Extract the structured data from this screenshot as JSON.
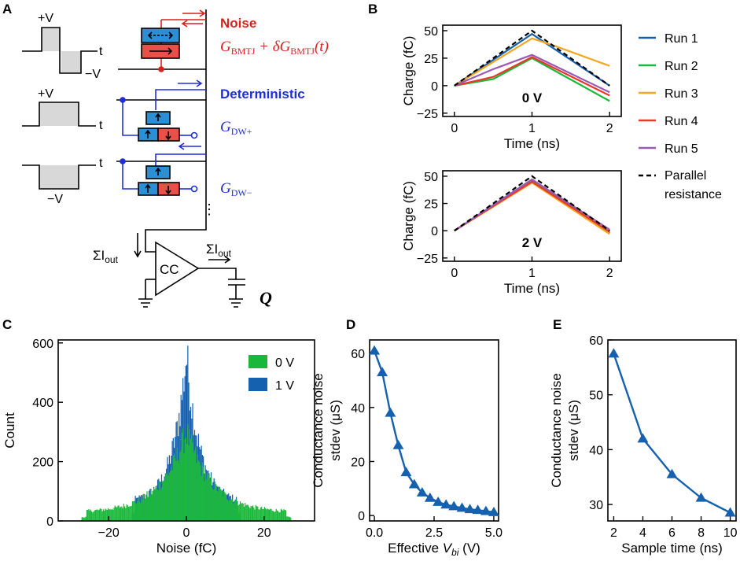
{
  "panels": {
    "a": "A",
    "b": "B",
    "c": "C",
    "d": "D",
    "e": "E"
  },
  "colors": {
    "blue": "#1660b0",
    "green": "#1ab83a",
    "orange": "#f5a623",
    "red": "#e8392b",
    "purple": "#9b59b6",
    "black": "#000000",
    "dw_blue": "#2c8fd6",
    "dw_red": "#e8504a",
    "circuit_blue": "#1f2fd8",
    "circuit_red": "#d9211e",
    "gray_fill": "#d8d8d8"
  },
  "circuit": {
    "pulse_plus": "+V",
    "pulse_minus": "−V",
    "pulse_t": "t",
    "noise_title": "Noise",
    "noise_eq_main": "G",
    "noise_eq_sub": "BMTJ",
    "noise_eq_mid": " + δG",
    "noise_eq_sub2": "BMTJ",
    "noise_eq_end": "(t)",
    "det_title": "Deterministic",
    "gdw_plus_main": "G",
    "gdw_plus_sub": "DW+",
    "gdw_minus_main": "G",
    "gdw_minus_sub": "DW−",
    "dots": "⋮",
    "sum_label": "ΣI",
    "sum_sub": "out",
    "cc_label": "CC",
    "q_label": "Q"
  },
  "chart_data": [
    {
      "id": "B-top",
      "type": "line",
      "annotation": "0 V",
      "xlabel": "Time (ns)",
      "ylabel": "Charge (fC)",
      "xlim": [
        -0.15,
        2.15
      ],
      "ylim": [
        -28,
        55
      ],
      "xticks": [
        "0",
        "1",
        "2"
      ],
      "xtick_values": [
        0,
        1,
        2
      ],
      "yticks": [
        "50",
        "25",
        "0",
        "−25"
      ],
      "ytick_values": [
        50,
        25,
        0,
        -25
      ],
      "series": [
        {
          "name": "Run 1",
          "color": "#1660b0",
          "x": [
            0,
            1,
            2
          ],
          "y": [
            0,
            47,
            0
          ]
        },
        {
          "name": "Run 2",
          "color": "#1ab83a",
          "x": [
            0,
            0.5,
            1,
            2
          ],
          "y": [
            0,
            6,
            25,
            -14
          ]
        },
        {
          "name": "Run 3",
          "color": "#f5a623",
          "x": [
            0,
            1,
            1.3,
            2
          ],
          "y": [
            0,
            43,
            36,
            18
          ]
        },
        {
          "name": "Run 4",
          "color": "#e8392b",
          "x": [
            0,
            0.5,
            1,
            2
          ],
          "y": [
            0,
            8,
            26,
            -9
          ]
        },
        {
          "name": "Run 5",
          "color": "#9b59b6",
          "x": [
            0,
            0.5,
            1,
            2
          ],
          "y": [
            0,
            15,
            28,
            -6
          ]
        },
        {
          "name": "Parallel resistance",
          "color": "#000000",
          "dashed": true,
          "x": [
            0,
            1,
            2
          ],
          "y": [
            0,
            50,
            0
          ]
        }
      ]
    },
    {
      "id": "B-bottom",
      "type": "line",
      "annotation": "2 V",
      "xlabel": "Time (ns)",
      "ylabel": "Charge (fC)",
      "xlim": [
        -0.15,
        2.15
      ],
      "ylim": [
        -28,
        55
      ],
      "xticks": [
        "0",
        "1",
        "2"
      ],
      "xtick_values": [
        0,
        1,
        2
      ],
      "yticks": [
        "50",
        "25",
        "0",
        "−25"
      ],
      "ytick_values": [
        50,
        25,
        0,
        -25
      ],
      "series": [
        {
          "name": "Run 1",
          "color": "#1660b0",
          "x": [
            0,
            1,
            2
          ],
          "y": [
            0,
            47,
            -2
          ]
        },
        {
          "name": "Run 2",
          "color": "#1ab83a",
          "x": [
            0,
            1,
            2
          ],
          "y": [
            0,
            46,
            -2
          ]
        },
        {
          "name": "Run 3",
          "color": "#f5a623",
          "x": [
            0,
            1,
            2
          ],
          "y": [
            0,
            44,
            -3
          ]
        },
        {
          "name": "Run 4",
          "color": "#e8392b",
          "x": [
            0,
            1,
            2
          ],
          "y": [
            0,
            45,
            -1
          ]
        },
        {
          "name": "Run 5",
          "color": "#9b59b6",
          "x": [
            0,
            1,
            2
          ],
          "y": [
            0,
            47,
            1
          ]
        },
        {
          "name": "Parallel resistance",
          "color": "#000000",
          "dashed": true,
          "x": [
            0,
            1,
            2
          ],
          "y": [
            0,
            50,
            0
          ]
        }
      ]
    },
    {
      "id": "C",
      "type": "histogram",
      "xlabel": "Noise (fC)",
      "ylabel": "Count",
      "xlim": [
        -33,
        33
      ],
      "ylim": [
        0,
        610
      ],
      "xticks": [
        "−20",
        "0",
        "20"
      ],
      "xtick_values": [
        -20,
        0,
        20
      ],
      "yticks": [
        "0",
        "200",
        "400",
        "600"
      ],
      "ytick_values": [
        0,
        200,
        400,
        600
      ],
      "legend_position": "top-right",
      "series": [
        {
          "name": "1 V",
          "color": "#1660b0",
          "range": [
            -14,
            14
          ],
          "peak": 560,
          "tail": 60
        },
        {
          "name": "0 V",
          "color": "#1ab83a",
          "range": [
            -27,
            27
          ],
          "peak": 300,
          "tail": 28
        }
      ],
      "legend": [
        {
          "name": "0 V",
          "color": "#1ab83a"
        },
        {
          "name": "1 V",
          "color": "#1660b0"
        }
      ]
    },
    {
      "id": "D",
      "type": "line",
      "xlabel_main": "Effective ",
      "xlabel_var": "V",
      "xlabel_sub": "bi",
      "xlabel_unit": " (V)",
      "ylabel": [
        "Conductance noise",
        "stdev (μS)"
      ],
      "xlim": [
        -0.2,
        5.2
      ],
      "ylim": [
        -2,
        65
      ],
      "xticks": [
        "0.0",
        "2.5",
        "5.0"
      ],
      "xtick_values": [
        0,
        2.5,
        5
      ],
      "yticks": [
        "0",
        "20",
        "40",
        "60"
      ],
      "ytick_values": [
        0,
        20,
        40,
        60
      ],
      "series": [
        {
          "name": "noise",
          "color": "#1660b0",
          "marker": "triangle",
          "x": [
            0.0,
            0.33,
            0.67,
            1.0,
            1.33,
            1.67,
            2.0,
            2.33,
            2.67,
            3.0,
            3.33,
            3.67,
            4.0,
            4.33,
            4.67,
            5.0
          ],
          "y": [
            61,
            53,
            38,
            26,
            16,
            11.5,
            8.5,
            6.5,
            5,
            4,
            3.4,
            2.8,
            2.3,
            2.0,
            1.6,
            1.2
          ]
        }
      ]
    },
    {
      "id": "E",
      "type": "line",
      "xlabel": "Sample time (ns)",
      "ylabel": [
        "Conductance noise",
        "stdev (μS)"
      ],
      "xlim": [
        1.6,
        10.4
      ],
      "ylim": [
        27,
        60
      ],
      "xticks": [
        "2",
        "4",
        "6",
        "8",
        "10"
      ],
      "xtick_values": [
        2,
        4,
        6,
        8,
        10
      ],
      "yticks": [
        "30",
        "40",
        "50",
        "60"
      ],
      "ytick_values": [
        30,
        40,
        50,
        60
      ],
      "series": [
        {
          "name": "noise",
          "color": "#1660b0",
          "marker": "triangle",
          "x": [
            2,
            4,
            6,
            8,
            10
          ],
          "y": [
            57.5,
            42,
            35.5,
            31.2,
            28.5
          ]
        }
      ]
    }
  ]
}
